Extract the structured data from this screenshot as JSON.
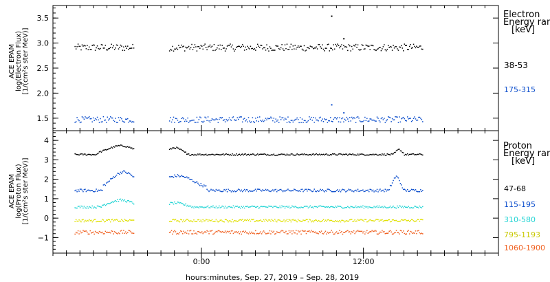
{
  "chart_data": [
    {
      "type": "scatter",
      "panel": "electron",
      "ylabel": [
        "ACE EPAM",
        "log(Electron Flux)",
        "[1/(cm²s ster MeV)]"
      ],
      "ylim": [
        1.25,
        3.75
      ],
      "yticks": [
        1.5,
        2.0,
        2.5,
        3.0,
        3.5
      ],
      "ytick_labels": [
        "1.5",
        "2.0",
        "2.5",
        "3.0",
        "3.5"
      ],
      "legend": {
        "title_lines": [
          "Electron",
          "Energy ran",
          "[keV]"
        ]
      },
      "series": [
        {
          "name": "38-53",
          "color": "#000000",
          "base": 2.92,
          "noise": 0.07,
          "segments": [
            {
              "start": -9.4,
              "end": -5.0
            },
            {
              "start": -2.4,
              "end": 16.4
            }
          ],
          "spikes": [
            {
              "x": 9.6,
              "y": 3.55
            },
            {
              "x": 10.5,
              "y": 3.1
            }
          ]
        },
        {
          "name": "175-315",
          "color": "#0b4dcc",
          "base": 1.48,
          "noise": 0.06,
          "segments": [
            {
              "start": -9.4,
              "end": -5.0
            },
            {
              "start": -2.4,
              "end": 16.4
            }
          ],
          "spikes": [
            {
              "x": 9.6,
              "y": 1.78
            },
            {
              "x": 10.5,
              "y": 1.62
            }
          ]
        }
      ]
    },
    {
      "type": "scatter",
      "panel": "proton",
      "ylabel": [
        "ACE EPAM",
        "log(Proton Flux)",
        "[1/(cm²s ster MeV)]"
      ],
      "ylim": [
        -1.8,
        4.5
      ],
      "yticks": [
        -1,
        0,
        1,
        2,
        3,
        4
      ],
      "ytick_labels": [
        "−1",
        "0",
        "1",
        "2",
        "3",
        "4"
      ],
      "xticks": [
        0,
        12
      ],
      "xtick_labels": [
        "0:00",
        "12:00"
      ],
      "xlim": [
        -11,
        22
      ],
      "xlabel": "hours:minutes, Sep. 27, 2019 – Sep. 28, 2019",
      "legend": {
        "title_lines": [
          "Proton",
          "Energy ran",
          "[keV]"
        ]
      },
      "series": [
        {
          "name": "47-68",
          "color": "#000000",
          "base": 3.3,
          "noise": 0.04,
          "segments": [
            {
              "start": -9.4,
              "end": -5.0
            },
            {
              "start": -2.4,
              "end": 16.4
            }
          ],
          "bumps": [
            {
              "x": -6.0,
              "w": 1.4,
              "h": 0.45
            },
            {
              "x": -2.0,
              "w": 0.7,
              "h": 0.35
            },
            {
              "x": 14.6,
              "w": 0.3,
              "h": 0.25
            }
          ]
        },
        {
          "name": "115-195",
          "color": "#0b4dcc",
          "base": 1.45,
          "noise": 0.07,
          "segments": [
            {
              "start": -9.4,
              "end": -5.0
            },
            {
              "start": -2.4,
              "end": 16.4
            }
          ],
          "bumps": [
            {
              "x": -5.8,
              "w": 1.3,
              "h": 0.95
            },
            {
              "x": -1.8,
              "w": 1.8,
              "h": 0.75
            },
            {
              "x": 14.4,
              "w": 0.4,
              "h": 0.7
            }
          ]
        },
        {
          "name": "310-580",
          "color": "#22d4d4",
          "base": 0.6,
          "noise": 0.06,
          "segments": [
            {
              "start": -9.4,
              "end": -5.0
            },
            {
              "start": -2.4,
              "end": 16.4
            }
          ],
          "bumps": [
            {
              "x": -6.0,
              "w": 1.2,
              "h": 0.35
            },
            {
              "x": -2.0,
              "w": 1.0,
              "h": 0.2
            }
          ]
        },
        {
          "name": "795-1193",
          "color": "#e0e000",
          "base": -0.1,
          "noise": 0.07,
          "segments": [
            {
              "start": -9.4,
              "end": -5.0
            },
            {
              "start": -2.4,
              "end": 16.4
            }
          ],
          "bumps": []
        },
        {
          "name": "1060-1900",
          "color": "#f06020",
          "base": -0.7,
          "noise": 0.1,
          "segments": [
            {
              "start": -9.4,
              "end": -5.0
            },
            {
              "start": -2.4,
              "end": 16.4
            }
          ],
          "bumps": []
        }
      ]
    }
  ]
}
